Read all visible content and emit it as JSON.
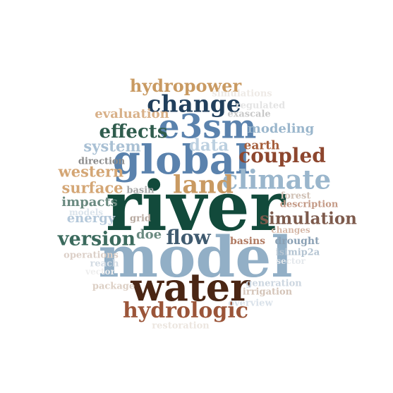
{
  "words": [
    {
      "text": "river",
      "color": "#124a3b"
    },
    {
      "text": "model",
      "color": "#92afc6"
    },
    {
      "text": "water",
      "color": "#4a2614"
    },
    {
      "text": "global",
      "color": "#5a82ad"
    },
    {
      "text": "climate",
      "color": "#9ab6cc"
    },
    {
      "text": "e3sm",
      "color": "#5a82ad"
    },
    {
      "text": "land",
      "color": "#c99a62"
    },
    {
      "text": "change",
      "color": "#213f5c"
    },
    {
      "text": "hydrologic",
      "color": "#9b5539"
    },
    {
      "text": "coupled",
      "color": "#8d462e"
    },
    {
      "text": "flow",
      "color": "#3f5a6f"
    },
    {
      "text": "version",
      "color": "#3b6a5d"
    },
    {
      "text": "simulation",
      "color": "#7d5a4c"
    },
    {
      "text": "hydropower",
      "color": "#c99a62"
    },
    {
      "text": "effects",
      "color": "#2f5c4d"
    },
    {
      "text": "surface",
      "color": "#d4a675"
    },
    {
      "text": "western",
      "color": "#d4a675"
    },
    {
      "text": "system",
      "color": "#a9c0d4"
    },
    {
      "text": "data",
      "color": "#bcd0e0"
    },
    {
      "text": "modeling",
      "color": "#9ab6cc"
    },
    {
      "text": "evaluation",
      "color": "#d8b088"
    },
    {
      "text": "earth",
      "color": "#a55d3a"
    },
    {
      "text": "impacts",
      "color": "#6a8a80"
    },
    {
      "text": "energy",
      "color": "#b4c8da"
    },
    {
      "text": "doe",
      "color": "#6a8a80"
    },
    {
      "text": "basins",
      "color": "#b07a62"
    },
    {
      "text": "drought",
      "color": "#8aa0b4"
    },
    {
      "text": "isimip2a",
      "color": "#b4c4d2"
    },
    {
      "text": "forest",
      "color": "#d0c0b4"
    },
    {
      "text": "description",
      "color": "#c49a86"
    },
    {
      "text": "changes",
      "color": "#d6b8a8"
    },
    {
      "text": "direction",
      "color": "#8a8a8a"
    },
    {
      "text": "basin",
      "color": "#a8a8a8"
    },
    {
      "text": "grid",
      "color": "#b8aaa0"
    },
    {
      "text": "models",
      "color": "#dbe4ec"
    },
    {
      "text": "operations",
      "color": "#dcd0c8"
    },
    {
      "text": "reach",
      "color": "#d4dce4"
    },
    {
      "text": "sector",
      "color": "#e4e8ec"
    },
    {
      "text": "vector",
      "color": "#eeeeee"
    },
    {
      "text": "package",
      "color": "#dccfc4"
    },
    {
      "text": "generation",
      "color": "#ccd6e0"
    },
    {
      "text": "irrigation",
      "color": "#d4c4b8"
    },
    {
      "text": "overview",
      "color": "#dae2ea"
    },
    {
      "text": "restoration",
      "color": "#ece6e0"
    },
    {
      "text": "regulated",
      "color": "#e4e4e4"
    },
    {
      "text": "exascale",
      "color": "#c8c8c8"
    },
    {
      "text": "simulations",
      "color": "#eeeae6"
    }
  ]
}
